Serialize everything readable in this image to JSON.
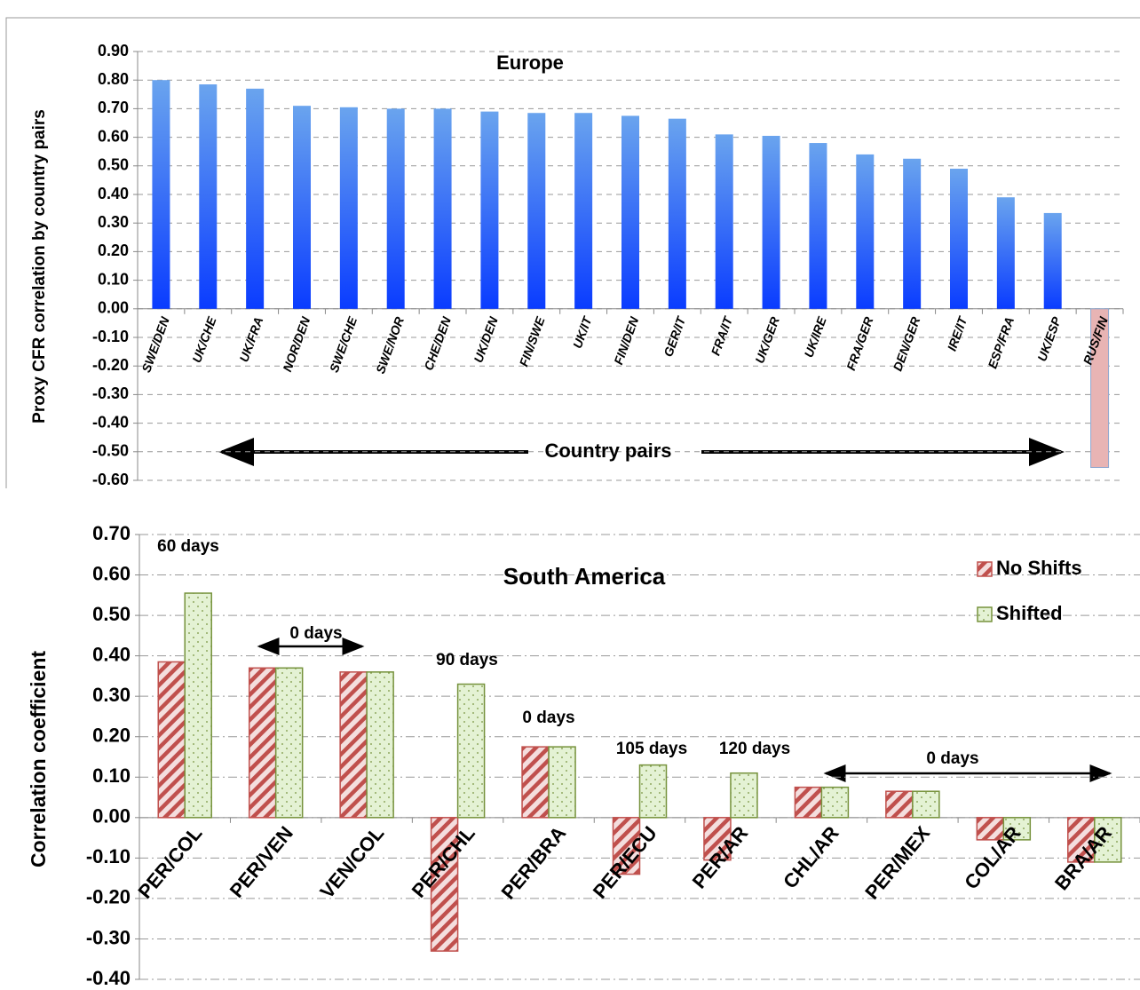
{
  "chart_data": [
    {
      "type": "bar",
      "title": "Europe",
      "y_label": "Proxy CFR correlation  by country pairs",
      "x_label": "Country pairs",
      "categories": [
        "SWE/DEN",
        "UK/CHE",
        "UK/FRA",
        "NOR/DEN",
        "SWE/CHE",
        "SWE/NOR",
        "CHE/DEN",
        "UK/DEN",
        "FIN/SWE",
        "UK/IT",
        "FIN/DEN",
        "GER/IT",
        "FRA/IT",
        "UK/GER",
        "UK/IRE",
        "FRA/GER",
        "DEN/GER",
        "IRE/IT",
        "ESP/FRA",
        "UK/ESP",
        "RUS/FIN"
      ],
      "values": [
        0.8,
        0.785,
        0.77,
        0.71,
        0.705,
        0.7,
        0.7,
        0.69,
        0.685,
        0.685,
        0.675,
        0.665,
        0.61,
        0.605,
        0.58,
        0.54,
        0.525,
        0.49,
        0.39,
        0.335,
        -0.555
      ],
      "color": "#2a6cf5",
      "negative_color": "#e8b4b4",
      "ylim": [
        -0.6,
        0.9
      ],
      "yticks": [
        {
          "value": -0.6,
          "label": "-0.60"
        },
        {
          "value": -0.5,
          "label": "-0.50"
        },
        {
          "value": -0.4,
          "label": "-0.40"
        },
        {
          "value": -0.3,
          "label": "-0.30"
        },
        {
          "value": -0.2,
          "label": "-0.20"
        },
        {
          "value": -0.1,
          "label": "-0.10"
        },
        {
          "value": 0,
          "label": "0.00"
        },
        {
          "value": 0.1,
          "label": "0.10"
        },
        {
          "value": 0.2,
          "label": "0.20"
        },
        {
          "value": 0.3,
          "label": "0.30"
        },
        {
          "value": 0.4,
          "label": "0.40"
        },
        {
          "value": 0.5,
          "label": "0.50"
        },
        {
          "value": 0.6,
          "label": "0.60"
        },
        {
          "value": 0.7,
          "label": "0.70"
        },
        {
          "value": 0.8,
          "label": "0.80"
        },
        {
          "value": 0.9,
          "label": "0.90"
        }
      ],
      "grid": true
    },
    {
      "type": "grouped_bar",
      "title": "South America",
      "y_label": "Correlation coefficient",
      "categories": [
        "PER/COL",
        "PER/VEN",
        "VEN/COL",
        "PER/CHL",
        "PER/BRA",
        "PER/ECU",
        "PER/AR",
        "CHL/AR",
        "PER/MEX",
        "COL/AR",
        "BRA/AR"
      ],
      "series": [
        {
          "name": "No Shifts",
          "color": "#c0504d",
          "pattern": "hatch",
          "values": [
            0.385,
            0.37,
            0.36,
            -0.33,
            0.175,
            -0.14,
            -0.105,
            0.075,
            0.065,
            -0.055,
            -0.11
          ]
        },
        {
          "name": "Shifted",
          "color": "#76923c",
          "pattern": "dots",
          "values": [
            0.555,
            0.37,
            0.36,
            0.33,
            0.175,
            0.13,
            0.11,
            0.075,
            0.065,
            -0.055,
            -0.11
          ]
        }
      ],
      "annotations": [
        "60 days",
        "0 days",
        "90 days",
        "0 days",
        "105 days",
        "120 days",
        "0 days"
      ],
      "ylim": [
        -0.4,
        0.7
      ],
      "yticks": [
        {
          "value": -0.4,
          "label": "-0.40"
        },
        {
          "value": -0.3,
          "label": "-0.30"
        },
        {
          "value": -0.2,
          "label": "-0.20"
        },
        {
          "value": -0.1,
          "label": "-0.10"
        },
        {
          "value": 0,
          "label": "0.00"
        },
        {
          "value": 0.1,
          "label": "0.10"
        },
        {
          "value": 0.2,
          "label": "0.20"
        },
        {
          "value": 0.3,
          "label": "0.30"
        },
        {
          "value": 0.4,
          "label": "0.40"
        },
        {
          "value": 0.5,
          "label": "0.50"
        },
        {
          "value": 0.6,
          "label": "0.60"
        },
        {
          "value": 0.7,
          "label": "0.70"
        }
      ],
      "grid": true,
      "legend": "upper right"
    }
  ]
}
